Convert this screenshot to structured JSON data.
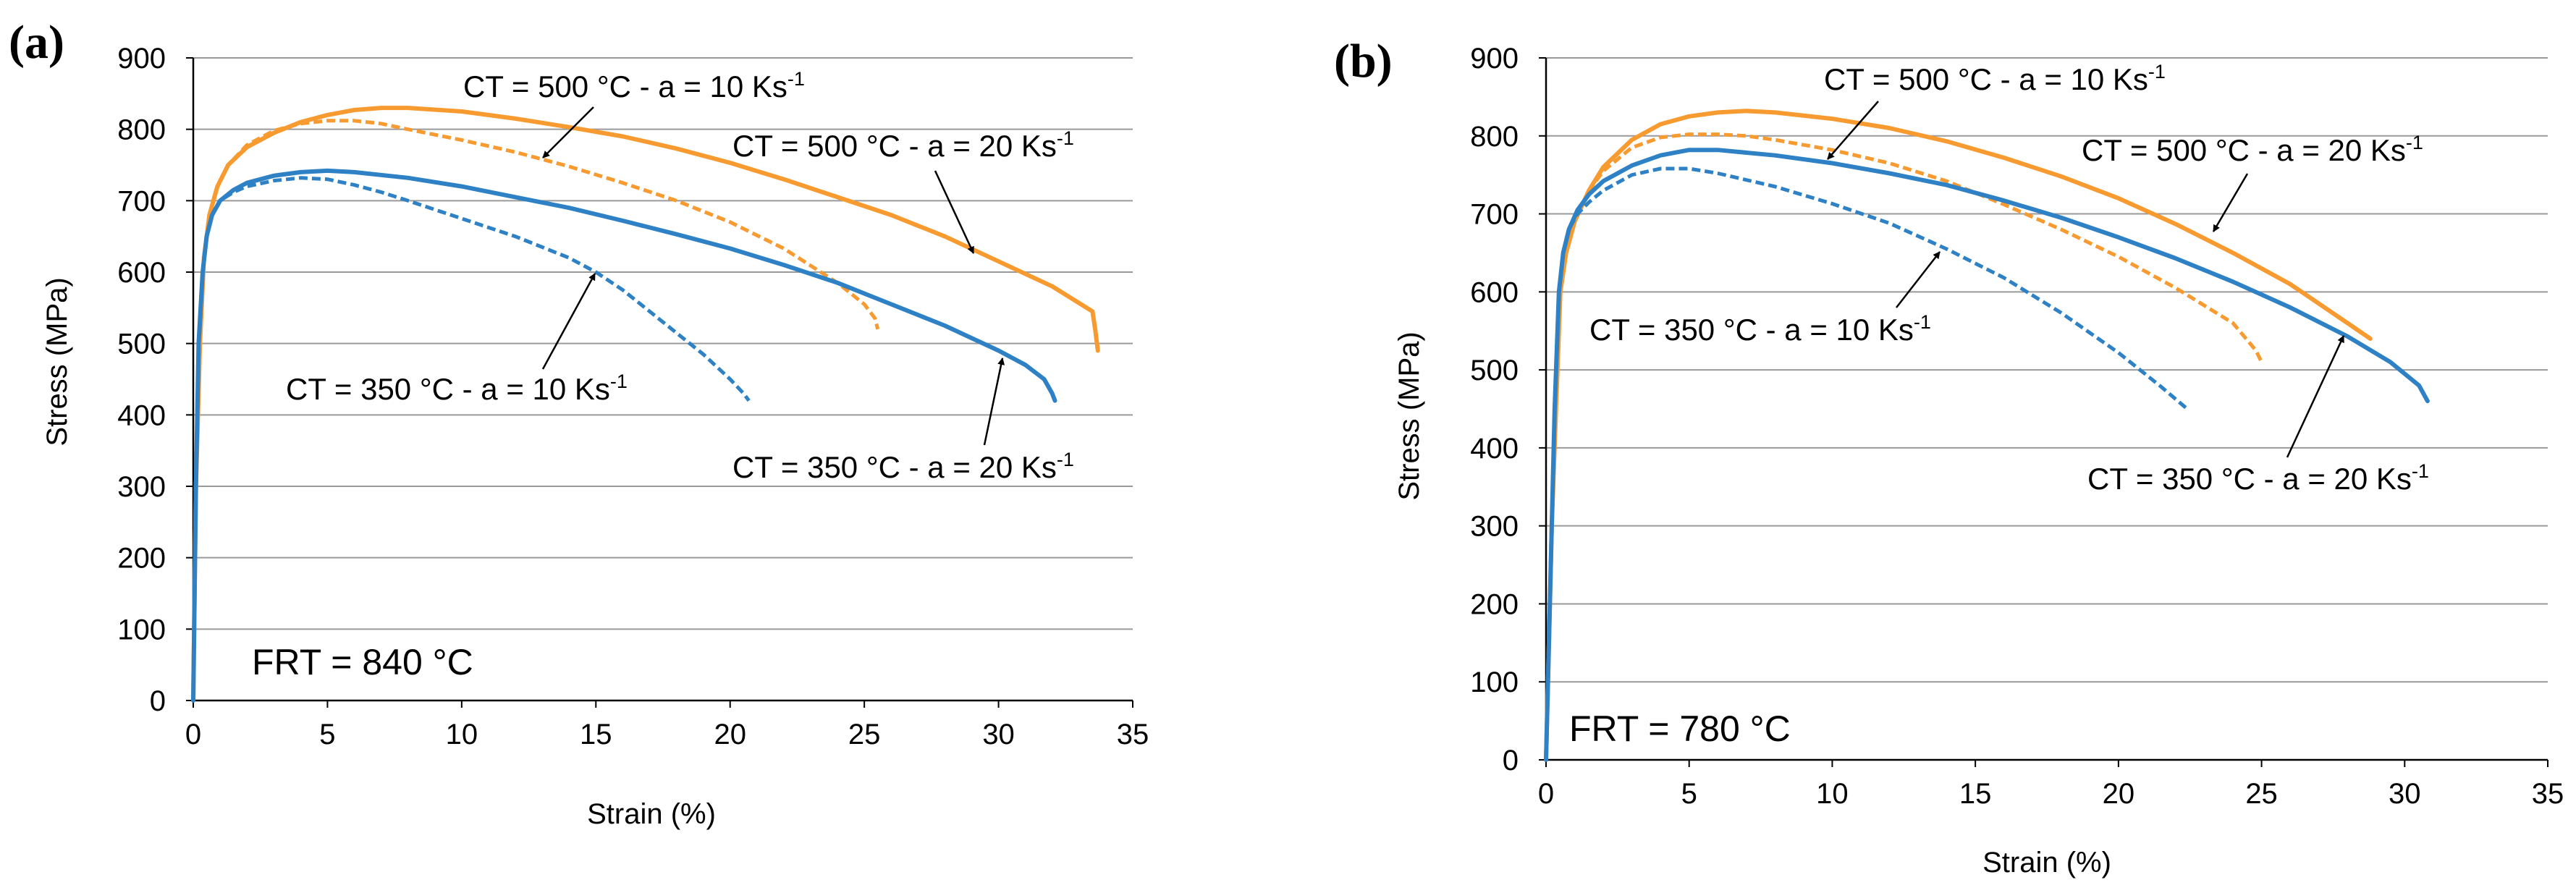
{
  "colors": {
    "ct500": "#F79A30",
    "ct350": "#2E81C4",
    "grid": "#9a9a9a",
    "axis": "#000000"
  },
  "chart_data": [
    {
      "panel_label": "(a)",
      "type": "line",
      "xlabel": "Strain (%)",
      "ylabel": "Stress (MPa)",
      "xlim": [
        0,
        35
      ],
      "ylim": [
        0,
        900
      ],
      "xticks": [
        "0",
        "5",
        "10",
        "15",
        "20",
        "25",
        "30",
        "35"
      ],
      "yticks": [
        "0",
        "100",
        "200",
        "300",
        "400",
        "500",
        "600",
        "700",
        "800",
        "900"
      ],
      "grid": true,
      "frt_text": "FRT = 840 °C",
      "series": [
        {
          "name": "CT = 500 °C - a = 20 Ks-1",
          "color": "ct500",
          "dash": false,
          "x": [
            0,
            0.1,
            0.25,
            0.4,
            0.6,
            0.9,
            1.3,
            2,
            3,
            4,
            5,
            6,
            7,
            8,
            10,
            12,
            14,
            16,
            18,
            20,
            22,
            24,
            26,
            28,
            30,
            32,
            33.5,
            33.6,
            33.7
          ],
          "y": [
            0,
            300,
            500,
            620,
            680,
            720,
            750,
            775,
            795,
            810,
            820,
            827,
            830,
            830,
            825,
            815,
            803,
            790,
            773,
            753,
            730,
            705,
            680,
            650,
            615,
            580,
            545,
            520,
            490
          ]
        },
        {
          "name": "CT = 500 °C - a = 10 Ks-1",
          "color": "ct500",
          "dash": true,
          "x": [
            0,
            0.1,
            0.25,
            0.4,
            0.6,
            0.9,
            1.3,
            2,
            3,
            4,
            5,
            6,
            7,
            8,
            10,
            12,
            14,
            16,
            18,
            20,
            22,
            24,
            25,
            25.4,
            25.5
          ],
          "y": [
            0,
            300,
            500,
            620,
            680,
            720,
            750,
            778,
            798,
            808,
            812,
            812,
            808,
            800,
            785,
            768,
            748,
            725,
            700,
            670,
            633,
            585,
            555,
            535,
            520
          ]
        },
        {
          "name": "CT = 350 °C - a = 20 Ks-1",
          "color": "ct350",
          "dash": false,
          "x": [
            0,
            0.1,
            0.2,
            0.35,
            0.5,
            0.7,
            1,
            1.5,
            2,
            3,
            4,
            5,
            6,
            8,
            10,
            12,
            14,
            16,
            18,
            20,
            22,
            24,
            26,
            28,
            30,
            31,
            31.7,
            32,
            32.1
          ],
          "y": [
            0,
            300,
            500,
            600,
            650,
            680,
            700,
            715,
            725,
            735,
            740,
            742,
            740,
            732,
            720,
            705,
            690,
            672,
            653,
            633,
            610,
            585,
            555,
            525,
            490,
            470,
            450,
            430,
            420
          ]
        },
        {
          "name": "CT = 350 °C - a = 10 Ks-1",
          "color": "ct350",
          "dash": true,
          "x": [
            0,
            0.1,
            0.2,
            0.35,
            0.5,
            0.7,
            1,
            1.5,
            2,
            3,
            4,
            5,
            6,
            7,
            8,
            10,
            12,
            14,
            15,
            16,
            17,
            18,
            19,
            20,
            20.5,
            20.7
          ],
          "y": [
            0,
            300,
            500,
            600,
            650,
            680,
            700,
            712,
            720,
            728,
            732,
            730,
            722,
            712,
            700,
            675,
            650,
            620,
            600,
            575,
            545,
            515,
            485,
            450,
            430,
            420
          ]
        }
      ],
      "annotations": [
        {
          "text": "CT = 500 °C -  a = 10 Ks",
          "sup": "-1"
        },
        {
          "text": "CT = 500 °C -  a = 20 Ks",
          "sup": "-1"
        },
        {
          "text": "CT = 350 °C -  a = 10 Ks",
          "sup": "-1"
        },
        {
          "text": "CT = 350 °C -  a = 20 Ks",
          "sup": "-1"
        }
      ]
    },
    {
      "panel_label": "(b)",
      "type": "line",
      "xlabel": "Strain (%)",
      "ylabel": "Stress (MPa)",
      "xlim": [
        0,
        35
      ],
      "ylim": [
        0,
        900
      ],
      "xticks": [
        "0",
        "5",
        "10",
        "15",
        "20",
        "25",
        "30",
        "35"
      ],
      "yticks": [
        "0",
        "100",
        "200",
        "300",
        "400",
        "500",
        "600",
        "700",
        "800",
        "900"
      ],
      "grid": true,
      "frt_text": "FRT = 780 °C",
      "series": [
        {
          "name": "CT = 500 °C - a = 20 Ks-1",
          "color": "ct500",
          "dash": false,
          "x": [
            0,
            0.1,
            0.2,
            0.35,
            0.5,
            0.7,
            1,
            1.5,
            2,
            3,
            4,
            5,
            6,
            7,
            8,
            10,
            12,
            14,
            16,
            18,
            20,
            22,
            24,
            26,
            28,
            28.8
          ],
          "y": [
            0,
            150,
            300,
            450,
            600,
            650,
            690,
            730,
            760,
            795,
            815,
            825,
            830,
            832,
            830,
            822,
            810,
            793,
            772,
            748,
            720,
            687,
            650,
            610,
            560,
            540
          ]
        },
        {
          "name": "CT = 500 °C - a = 10 Ks-1",
          "color": "ct500",
          "dash": true,
          "x": [
            0,
            0.1,
            0.2,
            0.35,
            0.5,
            0.7,
            1,
            1.5,
            2,
            3,
            4,
            5,
            6,
            7,
            8,
            10,
            12,
            14,
            16,
            18,
            20,
            22,
            24,
            24.8,
            25
          ],
          "y": [
            0,
            150,
            300,
            450,
            600,
            650,
            690,
            730,
            755,
            785,
            798,
            802,
            802,
            800,
            795,
            782,
            765,
            742,
            712,
            680,
            645,
            605,
            560,
            525,
            510
          ]
        },
        {
          "name": "CT = 350 °C - a = 20 Ks-1",
          "color": "ct350",
          "dash": false,
          "x": [
            0,
            0.1,
            0.2,
            0.3,
            0.45,
            0.6,
            0.8,
            1.1,
            1.5,
            2,
            3,
            4,
            5,
            6,
            8,
            10,
            12,
            14,
            16,
            18,
            20,
            22,
            24,
            26,
            28,
            29.5,
            30.5,
            30.8
          ],
          "y": [
            0,
            150,
            300,
            450,
            600,
            650,
            680,
            705,
            725,
            742,
            762,
            775,
            782,
            782,
            775,
            765,
            752,
            737,
            717,
            695,
            670,
            643,
            613,
            580,
            543,
            510,
            480,
            460
          ]
        },
        {
          "name": "CT = 350 °C - a = 10 Ks-1",
          "color": "ct350",
          "dash": true,
          "x": [
            0,
            0.1,
            0.2,
            0.3,
            0.45,
            0.6,
            0.8,
            1.1,
            1.5,
            2,
            3,
            4,
            5,
            6,
            8,
            10,
            12,
            14,
            16,
            18,
            20,
            21.5,
            22.4
          ],
          "y": [
            0,
            150,
            300,
            450,
            600,
            650,
            680,
            700,
            715,
            730,
            750,
            758,
            758,
            752,
            735,
            713,
            688,
            655,
            618,
            573,
            522,
            478,
            450
          ]
        }
      ],
      "annotations": [
        {
          "text": "CT = 500 °C -  a = 10 Ks",
          "sup": "-1"
        },
        {
          "text": "CT = 500 °C -  a = 20 Ks",
          "sup": "-1"
        },
        {
          "text": "CT = 350 °C -  a = 10 Ks",
          "sup": "-1"
        },
        {
          "text": "CT = 350 °C -  a = 20 Ks",
          "sup": "-1"
        }
      ]
    }
  ]
}
